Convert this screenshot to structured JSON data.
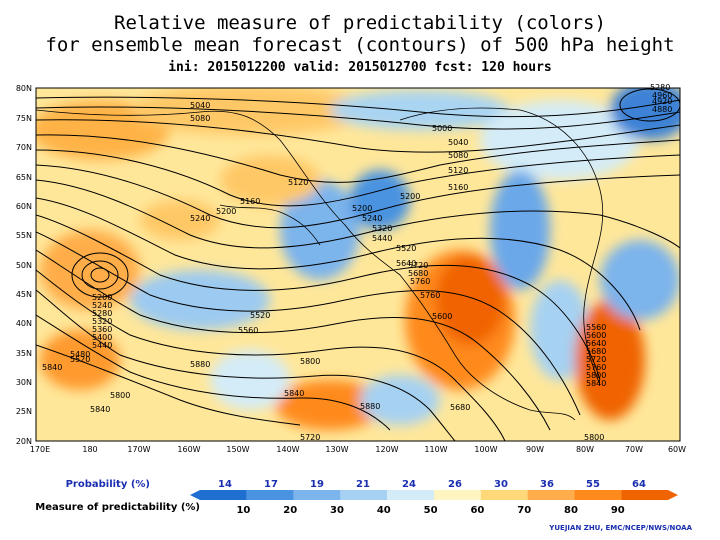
{
  "title": {
    "line1": "Relative measure of predictability (colors)",
    "line2": "for ensemble mean forecast (contours) of 500 hPa height",
    "line3": "ini: 2015012200 valid: 2015012700 fcst: 120 hours"
  },
  "map": {
    "lat_labels": [
      "80N",
      "75N",
      "70N",
      "65N",
      "60N",
      "55N",
      "50N",
      "45N",
      "40N",
      "35N",
      "30N",
      "25N",
      "20N"
    ],
    "lon_labels": [
      "170E",
      "180",
      "170W",
      "160W",
      "150W",
      "140W",
      "130W",
      "120W",
      "110W",
      "100W",
      "90W",
      "80W",
      "70W",
      "60W"
    ],
    "contour_labels": [
      "5040",
      "5080",
      "5000",
      "5040",
      "5080",
      "5120",
      "5120",
      "5160",
      "5160",
      "5200",
      "5240",
      "5200",
      "5200",
      "5240",
      "5320",
      "5440",
      "5520",
      "5640",
      "5760",
      "5520",
      "5560",
      "5600",
      "5680",
      "5720",
      "5760",
      "5800",
      "5840",
      "5840",
      "5880",
      "5800",
      "5840",
      "5880",
      "5200",
      "5240",
      "5280",
      "5320",
      "5360",
      "5400",
      "5440",
      "5480",
      "5520",
      "5560",
      "5600",
      "5640",
      "5680",
      "5720",
      "5760",
      "5800",
      "5840",
      "5800",
      "5680",
      "5280",
      "4960",
      "4920",
      "4880",
      "5720"
    ]
  },
  "colorbar": {
    "probability_label": "Probability (%)",
    "probability_values": [
      "14",
      "17",
      "19",
      "21",
      "24",
      "26",
      "30",
      "36",
      "55",
      "64"
    ],
    "predictability_label": "Measure of predictability (%)",
    "predictability_values": [
      "10",
      "20",
      "30",
      "40",
      "50",
      "60",
      "70",
      "80",
      "90"
    ],
    "colors": [
      "#1f6fd1",
      "#4a93e0",
      "#7cb4ec",
      "#a6d1f2",
      "#d4ecf7",
      "#fff5c0",
      "#ffd87a",
      "#ffad4a",
      "#ff8a1c",
      "#f06400"
    ]
  },
  "credit": "YUEJIAN ZHU, EMC/NCEP/NWS/NOAA"
}
